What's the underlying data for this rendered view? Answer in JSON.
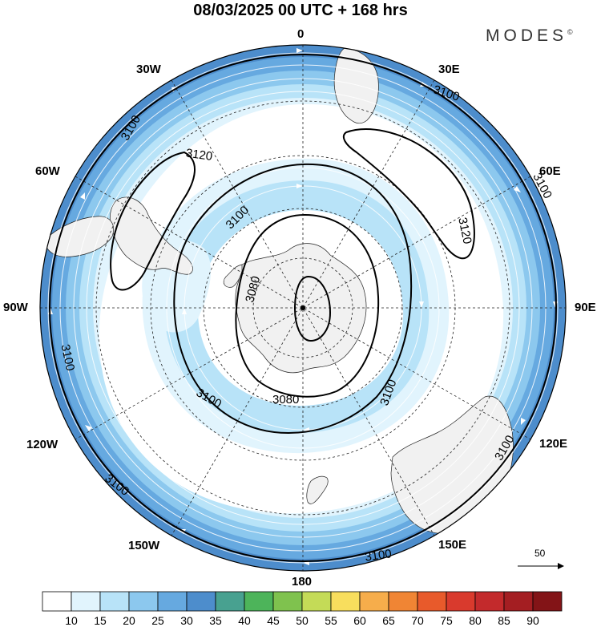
{
  "title": "08/03/2025  00 UTC  + 168 hrs",
  "brand": {
    "name": "MODES",
    "symbol": "©"
  },
  "longitude_labels": {
    "north": "0",
    "nne": "30E",
    "ene": "60E",
    "east": "90E",
    "ese": "120E",
    "sse": "150E",
    "south": "180",
    "ssw": "150W",
    "wsw": "120W",
    "west": "90W",
    "wnw": "60W",
    "nnw": "30W"
  },
  "contour_labels": {
    "c1": "3100",
    "c2": "3100",
    "c3": "3100",
    "c4": "3100",
    "c5": "3100",
    "c6": "3120",
    "c7": "3120",
    "c8": "3100",
    "c9": "3100",
    "c10": "3100",
    "c11": "3100",
    "c12": "3080",
    "c13": "3080"
  },
  "reference_vector": {
    "value": "50"
  },
  "legend": {
    "ticks": [
      "10",
      "15",
      "20",
      "25",
      "30",
      "35",
      "40",
      "45",
      "50",
      "55",
      "60",
      "65",
      "70",
      "75",
      "80",
      "85",
      "90"
    ],
    "colors": [
      "#ffffff",
      "#e1f4fd",
      "#b8e3f8",
      "#8cc8ee",
      "#66a9e0",
      "#4d8dcc",
      "#48a190",
      "#4db45a",
      "#7fc24e",
      "#c4db57",
      "#f8de5d",
      "#f6ad4b",
      "#f08534",
      "#e85a2b",
      "#d93a2d",
      "#c32a2c",
      "#a41e22",
      "#831417"
    ]
  },
  "colors": {
    "band_outer": "#4d8dcc",
    "band_strong": "#66a9e0",
    "band_mid": "#8cc8ee",
    "band_light": "#b8e3f8",
    "band_faint": "#e1f4fd",
    "land": "#f1f1f1"
  }
}
